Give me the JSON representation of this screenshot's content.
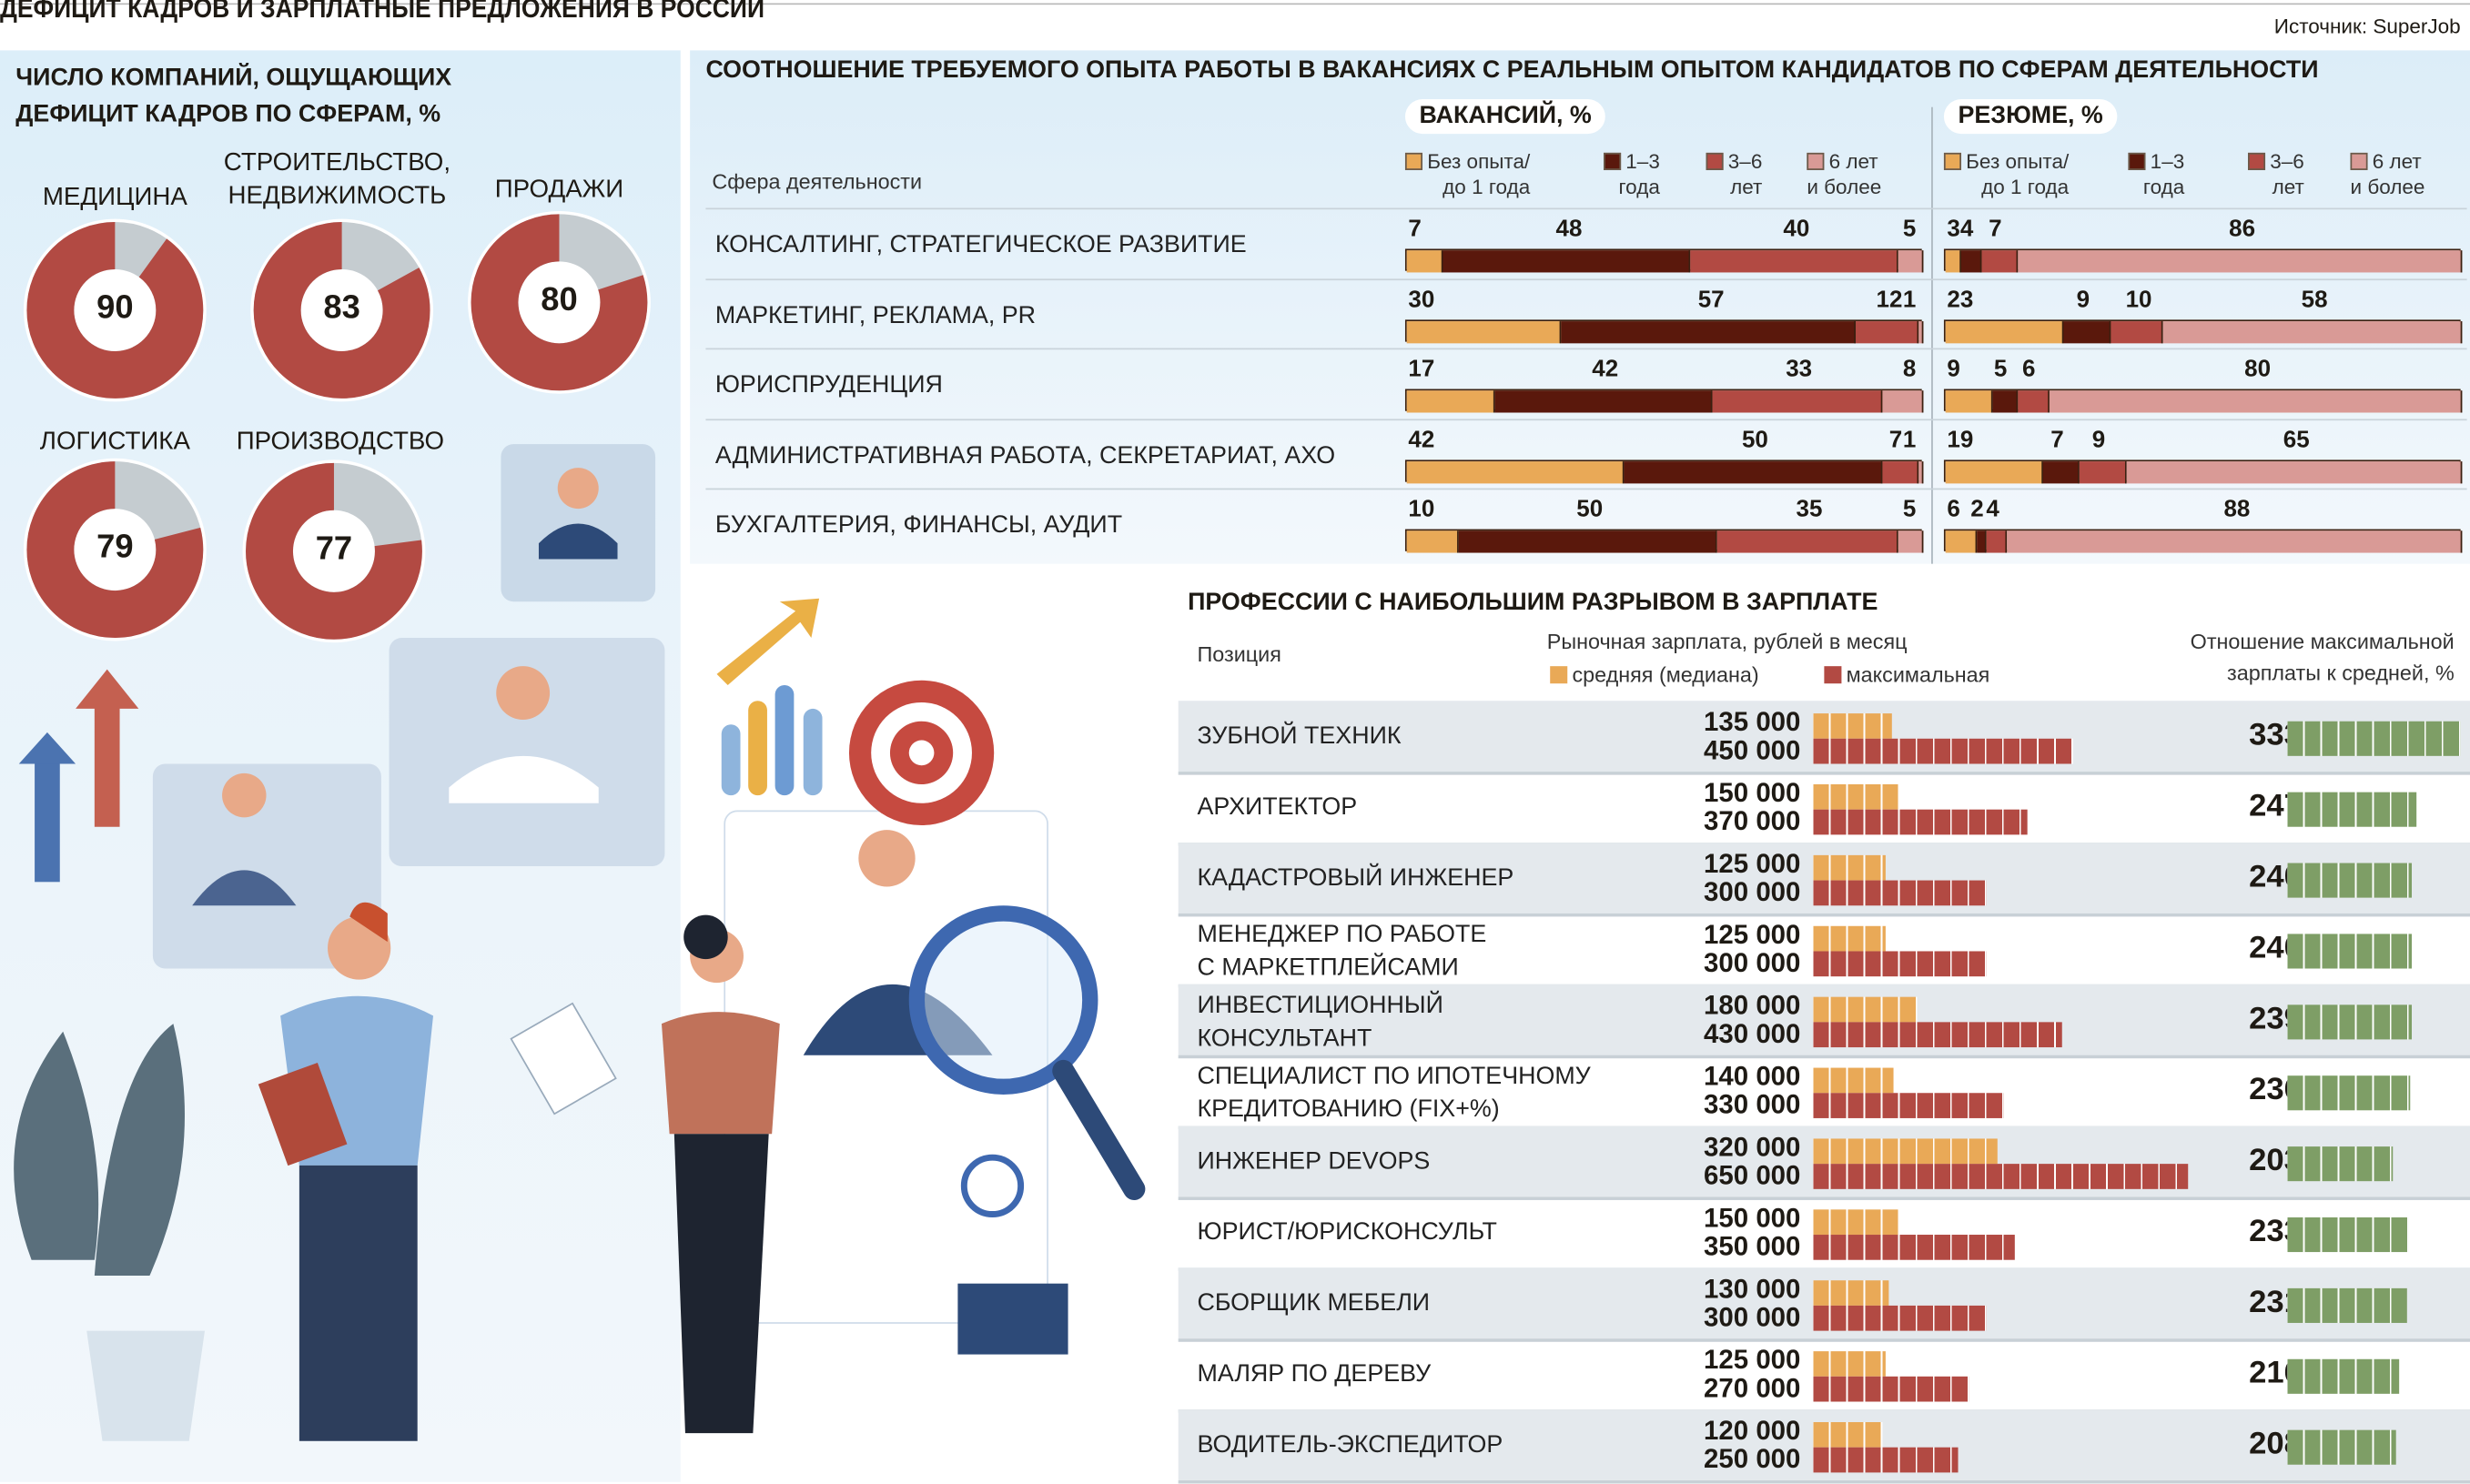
{
  "title": "ДЕФИЦИТ КАДРОВ И ЗАРПЛАТНЫЕ ПРЕДЛОЖЕНИЯ В РОССИИ",
  "source": "Источник: SuperJob",
  "colors": {
    "red": "#b24a43",
    "gray": "#c5ccd0",
    "orange": "#e9a957",
    "dark": "#5a180c",
    "pink": "#d99a96",
    "green": "#7e9e66"
  },
  "chart_data": [
    {
      "type": "pie",
      "title": "ЧИСЛО КОМПАНИЙ, ОЩУЩАЮЩИХ ДЕФИЦИТ КАДРОВ ПО СФЕРАМ, %",
      "items": [
        {
          "label1": "",
          "label2": "МЕДИЦИНА",
          "value": 90
        },
        {
          "label1": "СТРОИТЕЛЬСТВО,",
          "label2": "НЕДВИЖИМОСТЬ",
          "value": 83
        },
        {
          "label1": "",
          "label2": "ПРОДАЖИ",
          "value": 80
        },
        {
          "label1": "",
          "label2": "ЛОГИСТИКА",
          "value": 79
        },
        {
          "label1": "",
          "label2": "ПРОИЗВОДСТВО",
          "value": 77
        }
      ]
    },
    {
      "type": "bar",
      "stacked": true,
      "title": "СООТНОШЕНИЕ ТРЕБУЕМОГО ОПЫТА РАБОТЫ В ВАКАНСИЯХ С РЕАЛЬНЫМ ОПЫТОМ КАНДИДАТОВ ПО СФЕРАМ ДЕЯТЕЛЬНОСТИ",
      "row_header": "Сфера деятельности",
      "groups": [
        "ВАКАНСИЙ, %",
        "РЕЗЮМЕ, %"
      ],
      "legend": [
        {
          "l1": "Без опыта/",
          "l2": "до 1 года",
          "color": "#e9a957"
        },
        {
          "l1": "1–3",
          "l2": "года",
          "color": "#5a180c"
        },
        {
          "l1": "3–6",
          "l2": "лет",
          "color": "#b24a43"
        },
        {
          "l1": "6 лет",
          "l2": "и более",
          "color": "#d99a96"
        }
      ],
      "categories": [
        "КОНСАЛТИНГ, СТРАТЕГИЧЕСКОЕ РАЗВИТИЕ",
        "МАРКЕТИНГ, РЕКЛАМА, PR",
        "ЮРИСПРУДЕНЦИЯ",
        "АДМИНИСТРАТИВНАЯ РАБОТА, СЕКРЕТАРИАТ, АХО",
        "БУХГАЛТЕРИЯ, ФИНАНСЫ, АУДИТ"
      ],
      "vacancies": [
        [
          7,
          48,
          40,
          5
        ],
        [
          30,
          57,
          12,
          1
        ],
        [
          17,
          42,
          33,
          8
        ],
        [
          42,
          50,
          7,
          1
        ],
        [
          10,
          50,
          35,
          5
        ]
      ],
      "resumes": [
        [
          3,
          4,
          7,
          86
        ],
        [
          23,
          9,
          10,
          58
        ],
        [
          9,
          5,
          6,
          80
        ],
        [
          19,
          7,
          9,
          65
        ],
        [
          6,
          2,
          4,
          88
        ]
      ]
    },
    {
      "type": "bar",
      "title": "ПРОФЕССИИ С НАИБОЛЬШИМ РАЗРЫВОМ В ЗАРПЛАТЕ",
      "col_position": "Позиция",
      "col_salary": "Рыночная зарплата, рублей в месяц",
      "legend_median": "средняя (медиана)",
      "legend_max": "максимальная",
      "col_ratio1": "Отношение максимальной",
      "col_ratio2": "зарплаты к средней, %",
      "rows": [
        {
          "n1": "ЗУБНОЙ ТЕХНИК",
          "n2": "",
          "median": 135000,
          "max": 450000,
          "median_label": "135 000",
          "max_label": "450 000",
          "ratio": 333
        },
        {
          "n1": "АРХИТЕКТОР",
          "n2": "",
          "median": 150000,
          "max": 370000,
          "median_label": "150 000",
          "max_label": "370 000",
          "ratio": 247
        },
        {
          "n1": "КАДАСТРОВЫЙ ИНЖЕНЕР",
          "n2": "",
          "median": 125000,
          "max": 300000,
          "median_label": "125 000",
          "max_label": "300 000",
          "ratio": 240
        },
        {
          "n1": "МЕНЕДЖЕР ПО РАБОТЕ",
          "n2": "С МАРКЕТПЛЕЙСАМИ",
          "median": 125000,
          "max": 300000,
          "median_label": "125 000",
          "max_label": "300 000",
          "ratio": 240
        },
        {
          "n1": "ИНВЕСТИЦИОННЫЙ",
          "n2": "КОНСУЛЬТАНТ",
          "median": 180000,
          "max": 430000,
          "median_label": "180 000",
          "max_label": "430 000",
          "ratio": 239
        },
        {
          "n1": "СПЕЦИАЛИСТ ПО ИПОТЕЧНОМУ",
          "n2": "КРЕДИТОВАНИЮ (FIX+%)",
          "median": 140000,
          "max": 330000,
          "median_label": "140 000",
          "max_label": "330 000",
          "ratio": 236
        },
        {
          "n1": "ИНЖЕНЕР DEVOPS",
          "n2": "",
          "median": 320000,
          "max": 650000,
          "median_label": "320 000",
          "max_label": "650 000",
          "ratio": 203
        },
        {
          "n1": "ЮРИСТ/ЮРИСКОНСУЛЬТ",
          "n2": "",
          "median": 150000,
          "max": 350000,
          "median_label": "150 000",
          "max_label": "350 000",
          "ratio": 233
        },
        {
          "n1": "СБОРЩИК МЕБЕЛИ",
          "n2": "",
          "median": 130000,
          "max": 300000,
          "median_label": "130 000",
          "max_label": "300 000",
          "ratio": 231
        },
        {
          "n1": "МАЛЯР ПО ДЕРЕВУ",
          "n2": "",
          "median": 125000,
          "max": 270000,
          "median_label": "125 000",
          "max_label": "270 000",
          "ratio": 216
        },
        {
          "n1": "ВОДИТЕЛЬ-ЭКСПЕДИТОР",
          "n2": "",
          "median": 120000,
          "max": 250000,
          "median_label": "120 000",
          "max_label": "250 000",
          "ratio": 208
        }
      ]
    }
  ]
}
